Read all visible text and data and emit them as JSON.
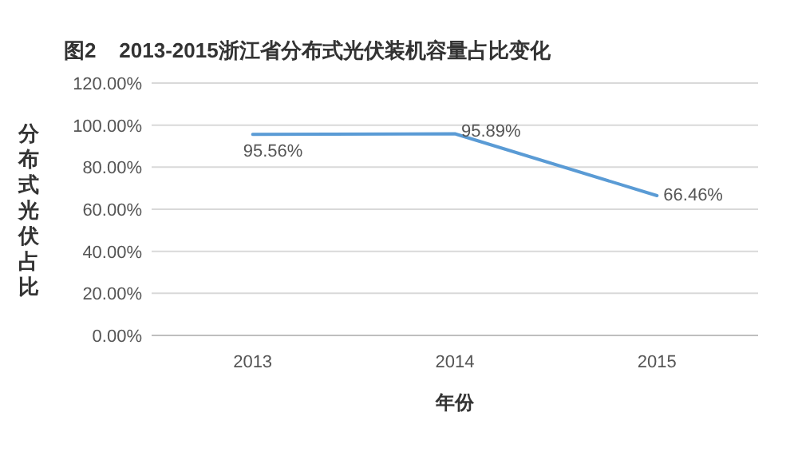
{
  "chart_data": {
    "type": "line",
    "title": "图2    2013-2015浙江省分布式光伏装机容量占比变化",
    "xlabel": "年份",
    "ylabel": "分布式光伏占比",
    "categories": [
      "2013",
      "2014",
      "2015"
    ],
    "series": [
      {
        "color": "#5a9bd5",
        "values": [
          95.56,
          95.89,
          66.46
        ]
      }
    ],
    "value_labels": [
      "95.56%",
      "95.89%",
      "66.46%"
    ],
    "ylim": [
      0,
      120
    ],
    "yticks": [
      {
        "value": 0,
        "label": "0.00%"
      },
      {
        "value": 20,
        "label": "20.00%"
      },
      {
        "value": 40,
        "label": "40.00%"
      },
      {
        "value": 60,
        "label": "60.00%"
      },
      {
        "value": 80,
        "label": "80.00%"
      },
      {
        "value": 100,
        "label": "100.00%"
      },
      {
        "value": 120,
        "label": "120.00%"
      }
    ],
    "grid": "y",
    "marker": "none",
    "line_style": "solid"
  }
}
